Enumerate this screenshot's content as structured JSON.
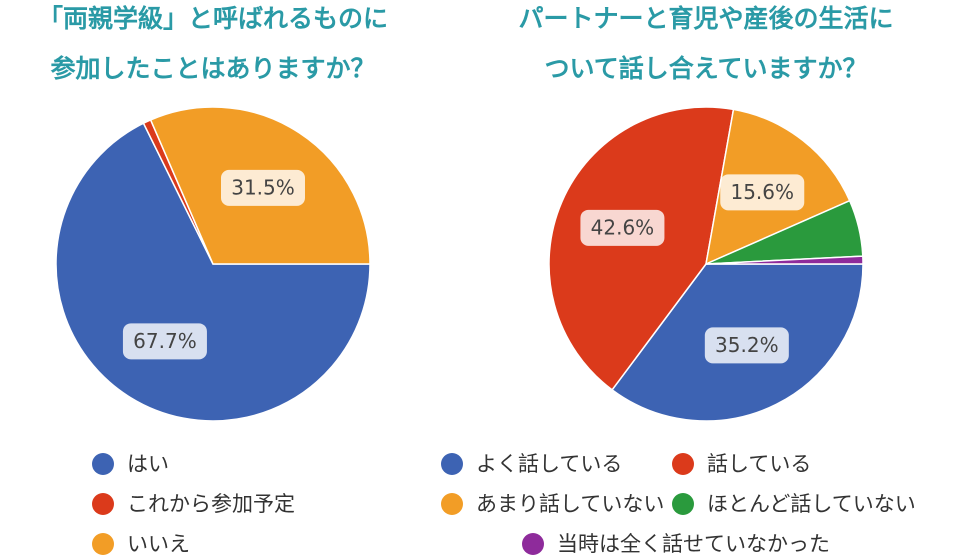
{
  "chart_data": [
    {
      "type": "pie",
      "title": [
        "「両親学級」と呼ばれるものに",
        "参加したことはありますか？"
      ],
      "categories": [
        "はい",
        "これから参加予定",
        "いいえ"
      ],
      "values": [
        67.7,
        0.8,
        31.5
      ],
      "value_labels": [
        "67.7%",
        null,
        "31.5%"
      ],
      "colors": [
        "#3d63b3",
        "#db3a1b",
        "#f29d26"
      ]
    },
    {
      "type": "pie",
      "title": [
        "パートナーと育児や産後の生活に",
        "ついて話し合えていますか？"
      ],
      "categories": [
        "よく話している",
        "話している",
        "あまり話していない",
        "ほとんど話していない",
        "当時は全く話せていなかった"
      ],
      "values": [
        35.2,
        42.6,
        15.6,
        5.8,
        0.8
      ],
      "value_labels": [
        "35.2%",
        "42.6%",
        "15.6%",
        null,
        null
      ],
      "colors": [
        "#3d63b3",
        "#db3a1b",
        "#f29d26",
        "#2a9a3d",
        "#8e2b9b"
      ]
    }
  ]
}
